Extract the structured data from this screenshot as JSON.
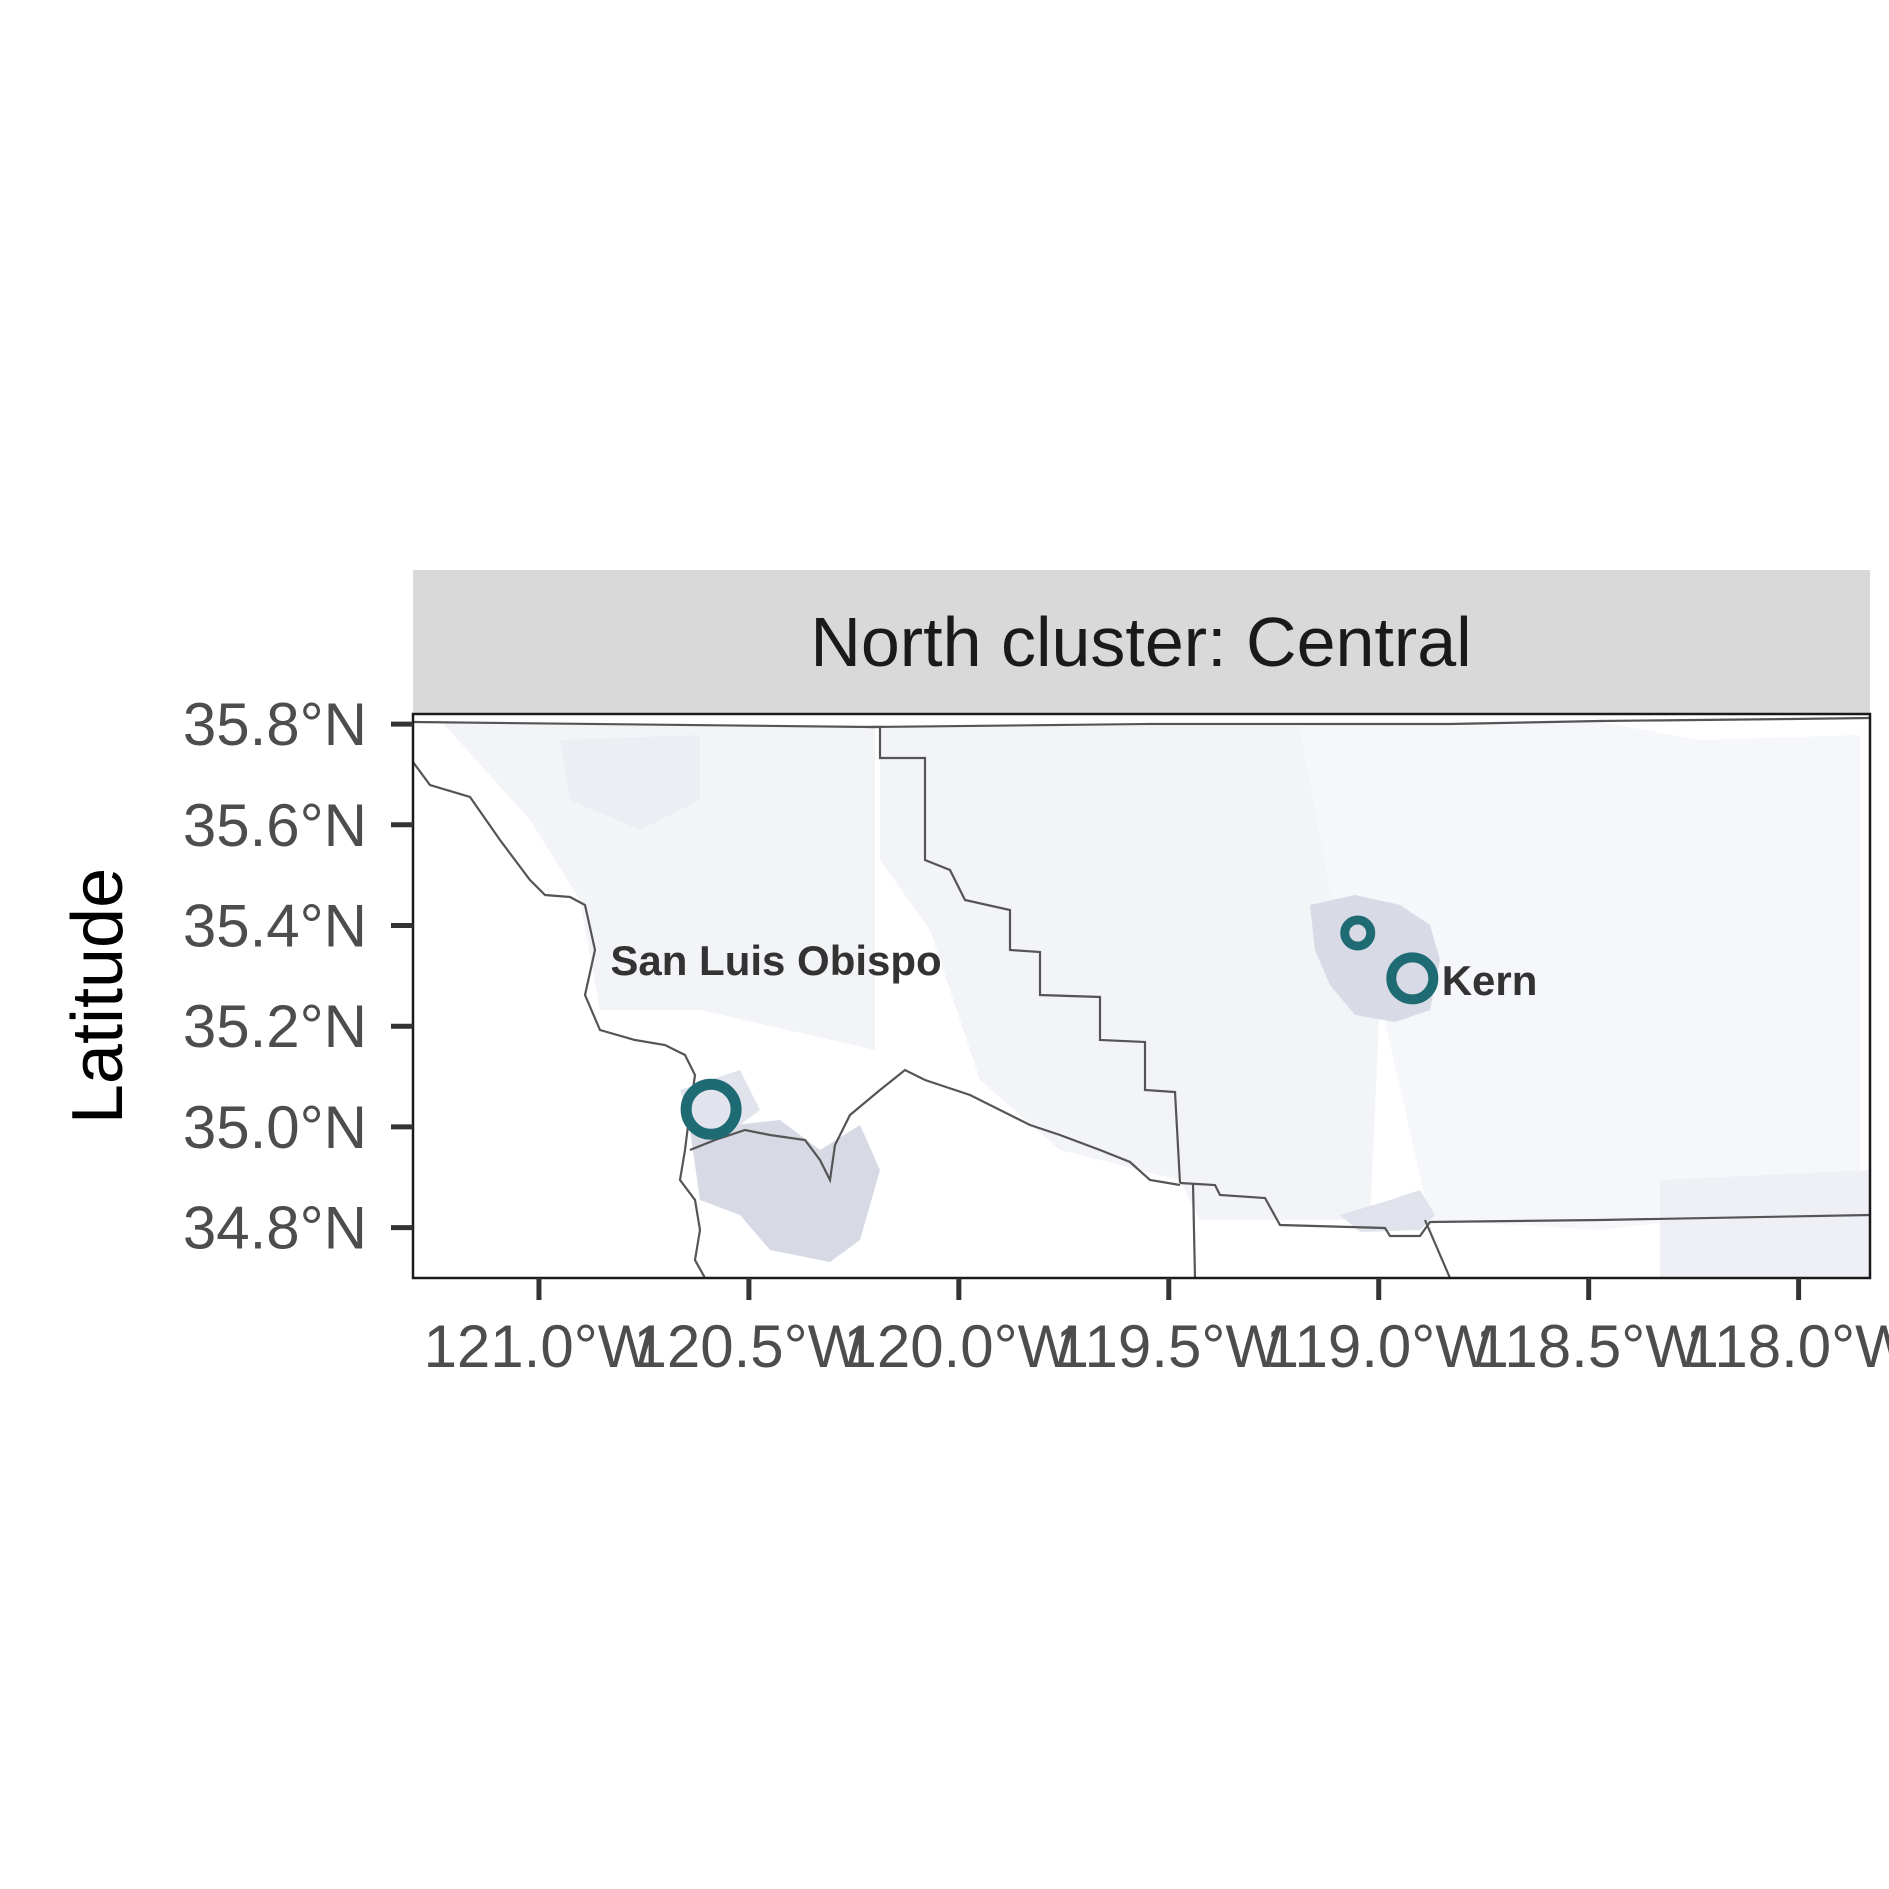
{
  "chart_data": {
    "type": "map",
    "facet_title": "North cluster: Central",
    "xlabel": "",
    "ylabel": "Latitude",
    "xlim": [
      -121.3,
      -117.83
    ],
    "ylim": [
      34.7,
      35.82
    ],
    "x_ticks": [
      {
        "value": -121.0,
        "label": "121.0°W"
      },
      {
        "value": -120.5,
        "label": "120.5°W"
      },
      {
        "value": -120.0,
        "label": "120.0°W"
      },
      {
        "value": -119.5,
        "label": "119.5°W"
      },
      {
        "value": -119.0,
        "label": "119.0°W"
      },
      {
        "value": -118.5,
        "label": "118.5°W"
      },
      {
        "value": -118.0,
        "label": "118.0°W"
      }
    ],
    "y_ticks": [
      {
        "value": 35.8,
        "label": "35.8°N"
      },
      {
        "value": 35.6,
        "label": "35.6°N"
      },
      {
        "value": 35.4,
        "label": "35.4°N"
      },
      {
        "value": 35.2,
        "label": "35.2°N"
      },
      {
        "value": 35.0,
        "label": "35.0°N"
      },
      {
        "value": 34.8,
        "label": "34.8°N"
      }
    ],
    "county_labels": [
      {
        "name": "San Luis Obispo",
        "lon": -120.83,
        "lat": 35.33
      },
      {
        "name": "Kern",
        "lon": -118.85,
        "lat": 35.29
      }
    ],
    "markers": [
      {
        "lon": -120.59,
        "lat": 35.035,
        "size": "large"
      },
      {
        "lon": -119.05,
        "lat": 35.385,
        "size": "small"
      },
      {
        "lon": -118.92,
        "lat": 35.295,
        "size": "medium"
      }
    ],
    "colors": {
      "marker": "#1f6b73",
      "strip_background": "#d9d9d9",
      "border": "#555555",
      "shade_light": "#f2f3f7",
      "shade_medium": "#d7d9e5"
    },
    "grid": false,
    "legend": "none"
  }
}
